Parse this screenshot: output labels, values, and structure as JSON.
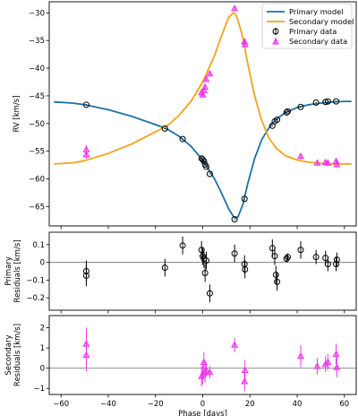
{
  "colors": {
    "primary": "#1f6fa6",
    "secondary": "#f5a31a",
    "primary_data": "#000000",
    "secondary_data": "#ee33ee",
    "zero_line": "#808080"
  },
  "chart_data": [
    {
      "type": "line",
      "panel": "rv",
      "ylabel": "RV [km/s]",
      "xlim": [
        -65,
        65
      ],
      "ylim": [
        -68.5,
        -28
      ],
      "xticks": [
        -60,
        -40,
        -20,
        0,
        20,
        40,
        60
      ],
      "yticks": [
        -65,
        -60,
        -55,
        -50,
        -45,
        -40,
        -35,
        -30
      ],
      "legend": {
        "placement": "top-right",
        "entries": [
          "Primary model",
          "Secondary model",
          "Primary data",
          "Secondary data"
        ]
      },
      "series": [
        {
          "name": "Primary model",
          "kind": "line",
          "color": "#1f6fa6",
          "points": [
            [
              -63,
              -46.1
            ],
            [
              -55,
              -46.3
            ],
            [
              -50,
              -46.6
            ],
            [
              -40,
              -47.5
            ],
            [
              -30,
              -48.7
            ],
            [
              -20,
              -50.2
            ],
            [
              -15,
              -51.0
            ],
            [
              -10,
              -52.3
            ],
            [
              -5,
              -54.1
            ],
            [
              0,
              -56.6
            ],
            [
              5,
              -60.0
            ],
            [
              8,
              -62.6
            ],
            [
              11,
              -65.4
            ],
            [
              13,
              -66.8
            ],
            [
              14,
              -67.1
            ],
            [
              15,
              -66.8
            ],
            [
              17,
              -64.6
            ],
            [
              19,
              -61.0
            ],
            [
              22,
              -56.3
            ],
            [
              25,
              -52.9
            ],
            [
              28,
              -50.8
            ],
            [
              31,
              -49.3
            ],
            [
              35,
              -48.0
            ],
            [
              40,
              -47.1
            ],
            [
              45,
              -46.6
            ],
            [
              50,
              -46.3
            ],
            [
              55,
              -46.1
            ],
            [
              60,
              -46.0
            ],
            [
              63,
              -46.0
            ]
          ]
        },
        {
          "name": "Secondary model",
          "kind": "line",
          "color": "#f5a31a",
          "points": [
            [
              -63,
              -57.3
            ],
            [
              -55,
              -57.1
            ],
            [
              -50,
              -56.7
            ],
            [
              -40,
              -55.4
            ],
            [
              -30,
              -53.7
            ],
            [
              -20,
              -51.5
            ],
            [
              -15,
              -50.4
            ],
            [
              -10,
              -48.5
            ],
            [
              -5,
              -46.0
            ],
            [
              0,
              -42.5
            ],
            [
              5,
              -37.7
            ],
            [
              8,
              -34.1
            ],
            [
              11,
              -30.8
            ],
            [
              13,
              -30.0
            ],
            [
              14,
              -30.3
            ],
            [
              15,
              -31.5
            ],
            [
              17,
              -34.5
            ],
            [
              19,
              -39.0
            ],
            [
              22,
              -45.0
            ],
            [
              25,
              -49.5
            ],
            [
              28,
              -52.6
            ],
            [
              31,
              -54.4
            ],
            [
              35,
              -55.8
            ],
            [
              40,
              -56.6
            ],
            [
              45,
              -57.0
            ],
            [
              50,
              -57.2
            ],
            [
              55,
              -57.3
            ],
            [
              60,
              -57.3
            ],
            [
              63,
              -57.3
            ]
          ]
        },
        {
          "name": "Primary data",
          "kind": "circle",
          "color": "#000000",
          "points": [
            [
              -49.3,
              -46.6,
              0.08
            ],
            [
              -16,
              -50.9,
              0.08
            ],
            [
              -8.5,
              -52.8,
              0.08
            ],
            [
              -0.5,
              -56.3,
              0.08
            ],
            [
              0,
              -56.5,
              0.08
            ],
            [
              0.5,
              -56.8,
              0.08
            ],
            [
              1,
              -57.4,
              0.08
            ],
            [
              1.5,
              -57.8,
              0.08
            ],
            [
              3,
              -59.1,
              0.08
            ],
            [
              13.5,
              -67.3,
              0.08
            ],
            [
              17.7,
              -63.6,
              0.08
            ],
            [
              29.5,
              -50.4,
              0.08
            ],
            [
              30.5,
              -49.6,
              0.08
            ],
            [
              31.5,
              -49.3,
              0.08
            ],
            [
              35.5,
              -48.0,
              0.08
            ],
            [
              36,
              -47.8,
              0.08
            ],
            [
              41.5,
              -47.0,
              0.08
            ],
            [
              48,
              -46.2,
              0.08
            ],
            [
              52,
              -46.1,
              0.08
            ],
            [
              53,
              -46.0,
              0.08
            ],
            [
              56.5,
              -46.0,
              0.08
            ]
          ]
        },
        {
          "name": "Secondary data",
          "kind": "triangle",
          "color": "#ee33ee",
          "points": [
            [
              -49.3,
              -54.7,
              0.8
            ],
            [
              -49.3,
              -55.6,
              0.8
            ],
            [
              -0.5,
              -44.4,
              0.6
            ],
            [
              0,
              -44.8,
              0.5
            ],
            [
              0.5,
              -44.0,
              0.5
            ],
            [
              1,
              -43.4,
              0.5
            ],
            [
              1.5,
              -42.0,
              0.4
            ],
            [
              3,
              -41.0,
              0.4
            ],
            [
              13.5,
              -29.2,
              0.4
            ],
            [
              17.7,
              -35.2,
              0.5
            ],
            [
              17.9,
              -35.7,
              0.5
            ],
            [
              41.5,
              -55.9,
              0.6
            ],
            [
              48.5,
              -57.1,
              0.5
            ],
            [
              52,
              -57.0,
              0.5
            ],
            [
              53,
              -57.1,
              0.5
            ],
            [
              56.5,
              -56.8,
              0.5
            ],
            [
              56.8,
              -57.4,
              0.5
            ]
          ]
        }
      ]
    },
    {
      "type": "scatter",
      "panel": "primary_residuals",
      "ylabel": [
        "Primary",
        "Residuals [km/s]"
      ],
      "xlim": [
        -65,
        65
      ],
      "ylim": [
        -0.27,
        0.17
      ],
      "xticks": [
        -60,
        -40,
        -20,
        0,
        20,
        40,
        60
      ],
      "yticks": [
        -0.2,
        -0.1,
        0.0,
        0.1
      ],
      "series": [
        {
          "name": "Primary data",
          "kind": "circle",
          "color": "#000000",
          "points": [
            [
              -49.3,
              -0.05,
              0.06
            ],
            [
              -49.3,
              -0.075,
              0.06
            ],
            [
              -16,
              -0.03,
              0.05
            ],
            [
              -8.5,
              0.095,
              0.05
            ],
            [
              -0.5,
              0.07,
              0.05
            ],
            [
              0,
              0.035,
              0.05
            ],
            [
              0.5,
              0.02,
              0.05
            ],
            [
              1,
              -0.06,
              0.05
            ],
            [
              1.5,
              0.01,
              0.05
            ],
            [
              3,
              -0.175,
              0.05
            ],
            [
              13.5,
              0.05,
              0.05
            ],
            [
              17.7,
              -0.01,
              0.05
            ],
            [
              17.9,
              -0.04,
              0.05
            ],
            [
              29.5,
              0.08,
              0.05
            ],
            [
              30.5,
              0.035,
              0.05
            ],
            [
              31,
              -0.07,
              0.05
            ],
            [
              31.5,
              -0.11,
              0.05
            ],
            [
              35.5,
              0.02,
              0.02
            ],
            [
              36,
              0.03,
              0.02
            ],
            [
              41.5,
              0.07,
              0.05
            ],
            [
              48,
              0.03,
              0.04
            ],
            [
              52,
              0.025,
              0.04
            ],
            [
              53,
              -0.01,
              0.04
            ],
            [
              56.5,
              -0.01,
              0.04
            ],
            [
              56.8,
              0.015,
              0.04
            ]
          ]
        }
      ]
    },
    {
      "type": "scatter",
      "panel": "secondary_residuals",
      "ylabel": [
        "Secondary",
        "Residuals [km/s]"
      ],
      "xlabel": "Phase [days]",
      "xlim": [
        -65,
        65
      ],
      "ylim": [
        -1.3,
        2.6
      ],
      "xticks": [
        -60,
        -40,
        -20,
        0,
        20,
        40,
        60
      ],
      "yticks": [
        -1,
        0,
        1,
        2
      ],
      "series": [
        {
          "name": "Secondary data",
          "kind": "triangle",
          "color": "#ee33ee",
          "points": [
            [
              -49.3,
              1.2,
              0.8
            ],
            [
              -49.3,
              0.65,
              0.8
            ],
            [
              -0.5,
              -0.4,
              0.5
            ],
            [
              0,
              -0.3,
              0.5
            ],
            [
              0.5,
              0.3,
              0.5
            ],
            [
              1,
              -0.2,
              0.5
            ],
            [
              1.5,
              -0.1,
              0.3
            ],
            [
              3,
              -0.2,
              0.3
            ],
            [
              13.5,
              1.15,
              0.35
            ],
            [
              17.7,
              -0.65,
              0.5
            ],
            [
              17.9,
              -0.1,
              0.5
            ],
            [
              41.5,
              0.6,
              0.55
            ],
            [
              48.5,
              0.1,
              0.4
            ],
            [
              52,
              0.2,
              0.4
            ],
            [
              53,
              0.3,
              0.4
            ],
            [
              56.5,
              0.7,
              0.5
            ],
            [
              56.8,
              0.05,
              0.5
            ]
          ]
        }
      ]
    }
  ]
}
